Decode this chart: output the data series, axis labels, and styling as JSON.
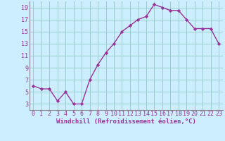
{
  "x": [
    0,
    1,
    2,
    3,
    4,
    5,
    6,
    7,
    8,
    9,
    10,
    11,
    12,
    13,
    14,
    15,
    16,
    17,
    18,
    19,
    20,
    21,
    22,
    23
  ],
  "y": [
    6.0,
    5.5,
    5.5,
    3.5,
    5.0,
    3.0,
    3.0,
    7.0,
    9.5,
    11.5,
    13.0,
    15.0,
    16.0,
    17.0,
    17.5,
    19.5,
    19.0,
    18.5,
    18.5,
    17.0,
    15.5,
    15.5,
    15.5,
    13.0
  ],
  "line_color": "#993399",
  "marker": "D",
  "markersize": 2.2,
  "linewidth": 1.0,
  "xlabel": "Windchill (Refroidissement éolien,°C)",
  "xlim": [
    -0.5,
    23.5
  ],
  "ylim": [
    2,
    20
  ],
  "yticks": [
    3,
    5,
    7,
    9,
    11,
    13,
    15,
    17,
    19
  ],
  "xticks": [
    0,
    1,
    2,
    3,
    4,
    5,
    6,
    7,
    8,
    9,
    10,
    11,
    12,
    13,
    14,
    15,
    16,
    17,
    18,
    19,
    20,
    21,
    22,
    23
  ],
  "background_color": "#cceeff",
  "grid_color": "#99cccc",
  "xlabel_fontsize": 6.5,
  "tick_fontsize": 6.0,
  "xlabel_color": "#993399",
  "tick_color": "#993399",
  "spine_color": "#888888"
}
